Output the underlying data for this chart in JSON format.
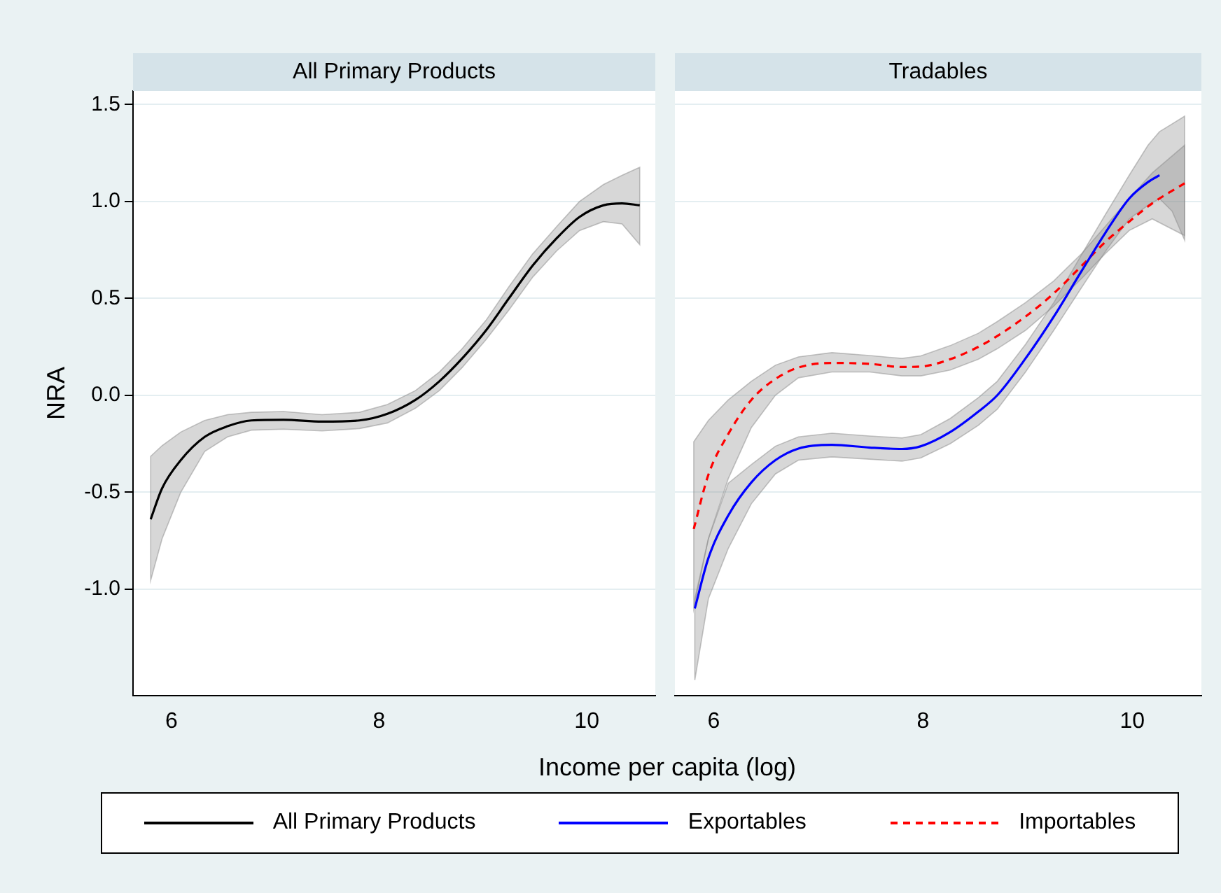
{
  "chart_data": [
    {
      "type": "line",
      "title": "All Primary Products",
      "ylabel": "NRA",
      "xlabel": "Income per capita (log)",
      "xlim": [
        5.63,
        10.66
      ],
      "xticks": [
        6,
        8,
        10
      ],
      "ylim": [
        -1.55,
        1.57
      ],
      "yticks": [
        {
          "value": -1,
          "label": "-1.0"
        },
        {
          "value": -0.5,
          "label": "-0.5"
        },
        {
          "value": 0,
          "label": "0.0"
        },
        {
          "value": 0.5,
          "label": "0.5"
        },
        {
          "value": 1,
          "label": "1.0"
        },
        {
          "value": 1.5,
          "label": "1.5"
        }
      ],
      "grid": "y",
      "legend": "bottom",
      "line_style": "solid",
      "marker": "none",
      "series": [
        {
          "name": "All Primary Products",
          "color": "#000000",
          "x": [
            5.8,
            5.91,
            6.09,
            6.32,
            6.54,
            6.77,
            7.08,
            7.45,
            7.81,
            8.08,
            8.35,
            8.58,
            8.8,
            9.03,
            9.25,
            9.48,
            9.71,
            9.93,
            10.16,
            10.34,
            10.51
          ],
          "values": [
            -0.64,
            -0.48,
            -0.335,
            -0.215,
            -0.16,
            -0.13,
            -0.127,
            -0.136,
            -0.13,
            -0.096,
            -0.024,
            0.072,
            0.19,
            0.335,
            0.5,
            0.67,
            0.81,
            0.92,
            0.98,
            0.99,
            0.98
          ],
          "lower": [
            -0.955,
            -0.74,
            -0.5,
            -0.29,
            -0.215,
            -0.18,
            -0.175,
            -0.184,
            -0.172,
            -0.143,
            -0.067,
            0.024,
            0.143,
            0.287,
            0.44,
            0.61,
            0.745,
            0.85,
            0.896,
            0.884,
            0.777
          ],
          "upper": [
            -0.315,
            -0.26,
            -0.19,
            -0.13,
            -0.1,
            -0.088,
            -0.084,
            -0.1,
            -0.088,
            -0.048,
            0.024,
            0.12,
            0.24,
            0.387,
            0.56,
            0.73,
            0.87,
            1.0,
            1.087,
            1.135,
            1.176
          ]
        }
      ]
    },
    {
      "type": "line",
      "title": "Tradables",
      "xlim": [
        5.63,
        10.66
      ],
      "xticks": [
        6,
        8,
        10
      ],
      "ylim": [
        -1.55,
        1.57
      ],
      "yticks": [
        {
          "value": -1,
          "label": null
        },
        {
          "value": -0.5,
          "label": null
        },
        {
          "value": 0,
          "label": null
        },
        {
          "value": 0.5,
          "label": null
        },
        {
          "value": 1,
          "label": null
        },
        {
          "value": 1.5,
          "label": null
        }
      ],
      "tick_labels": "x",
      "grid": "y",
      "legend": "bottom",
      "marker": "none",
      "series": [
        {
          "name": "Exportables",
          "color": "#0000ff",
          "line_style": "solid",
          "x": [
            5.82,
            5.95,
            6.14,
            6.36,
            6.59,
            6.81,
            7.13,
            7.49,
            7.8,
            7.98,
            8.26,
            8.53,
            8.71,
            8.98,
            9.25,
            9.52,
            9.74,
            9.97,
            10.15,
            10.26,
            10.38,
            10.5
          ],
          "values": [
            -1.1,
            -0.84,
            -0.62,
            -0.45,
            -0.335,
            -0.275,
            -0.256,
            -0.27,
            -0.277,
            -0.263,
            -0.19,
            -0.084,
            0,
            0.19,
            0.406,
            0.645,
            0.836,
            1.015,
            1.1,
            1.135,
            null,
            null
          ],
          "lower": [
            -1.47,
            -1.05,
            -0.79,
            -0.56,
            -0.406,
            -0.335,
            -0.318,
            -0.33,
            -0.34,
            -0.323,
            -0.25,
            -0.155,
            -0.072,
            0.12,
            0.335,
            0.56,
            0.74,
            0.91,
            0.98,
            1.015,
            0.95,
            0.8
          ],
          "upper": [
            -1.05,
            -0.74,
            -0.454,
            -0.358,
            -0.263,
            -0.215,
            -0.196,
            -0.21,
            -0.22,
            -0.203,
            -0.12,
            -0.012,
            0.072,
            0.263,
            0.478,
            0.73,
            0.93,
            1.135,
            1.29,
            1.36,
            1.4,
            1.44
          ]
        },
        {
          "name": "Importables",
          "color": "#ff0000",
          "line_style": "dashed",
          "x": [
            5.81,
            5.95,
            6.14,
            6.36,
            6.59,
            6.81,
            7.13,
            7.49,
            7.8,
            7.98,
            8.26,
            8.53,
            8.71,
            8.98,
            9.25,
            9.52,
            9.74,
            9.97,
            10.19,
            10.5
          ],
          "values": [
            -0.69,
            -0.41,
            -0.2,
            -0.024,
            0.084,
            0.143,
            0.167,
            0.162,
            0.146,
            0.148,
            0.186,
            0.25,
            0.306,
            0.406,
            0.526,
            0.67,
            0.79,
            0.896,
            0.99,
            1.094
          ],
          "lower": [
            -1.1,
            -0.74,
            -0.43,
            -0.167,
            0,
            0.09,
            0.12,
            0.12,
            0.1,
            0.1,
            0.13,
            0.186,
            0.24,
            0.335,
            0.46,
            0.605,
            0.73,
            0.85,
            0.91,
            0.824
          ],
          "upper": [
            -0.24,
            -0.13,
            -0.024,
            0.072,
            0.155,
            0.198,
            0.22,
            0.205,
            0.19,
            0.203,
            0.256,
            0.32,
            0.38,
            0.478,
            0.59,
            0.733,
            0.87,
            1.015,
            1.147,
            1.29
          ]
        }
      ]
    }
  ]
}
